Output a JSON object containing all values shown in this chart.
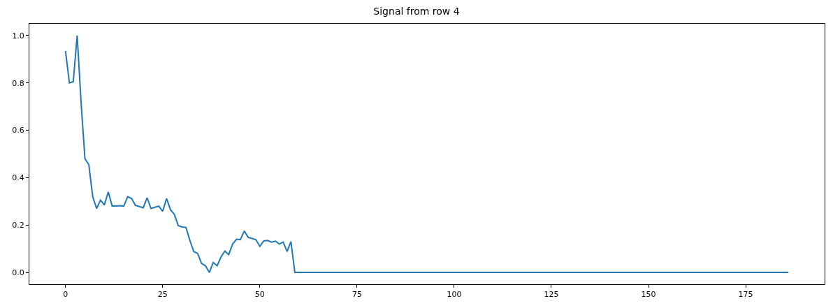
{
  "chart_data": {
    "type": "line",
    "title": "Signal from row 4",
    "x": [
      0,
      1,
      2,
      3,
      4,
      5,
      6,
      7,
      8,
      9,
      10,
      11,
      12,
      13,
      14,
      15,
      16,
      17,
      18,
      19,
      20,
      21,
      22,
      23,
      24,
      25,
      26,
      27,
      28,
      29,
      30,
      31,
      32,
      33,
      34,
      35,
      36,
      37,
      38,
      39,
      40,
      41,
      42,
      43,
      44,
      45,
      46,
      47,
      48,
      49,
      50,
      51,
      52,
      53,
      54,
      55,
      56,
      57,
      58,
      59,
      186
    ],
    "series": [
      {
        "color": "#1f77b4",
        "values": [
          0.935,
          0.8,
          0.805,
          1.0,
          0.72,
          0.48,
          0.455,
          0.32,
          0.27,
          0.305,
          0.285,
          0.34,
          0.28,
          0.28,
          0.282,
          0.28,
          0.32,
          0.312,
          0.283,
          0.278,
          0.273,
          0.315,
          0.27,
          0.275,
          0.28,
          0.258,
          0.312,
          0.265,
          0.245,
          0.198,
          0.192,
          0.19,
          0.135,
          0.088,
          0.08,
          0.038,
          0.028,
          0.0,
          0.042,
          0.028,
          0.065,
          0.09,
          0.075,
          0.12,
          0.14,
          0.138,
          0.175,
          0.148,
          0.143,
          0.138,
          0.11,
          0.133,
          0.135,
          0.128,
          0.132,
          0.12,
          0.128,
          0.088,
          0.13,
          0.0,
          0.0
        ]
      }
    ],
    "xlim": [
      -9.3,
      195.3
    ],
    "ylim": [
      -0.05,
      1.05
    ],
    "xticks": [
      0,
      25,
      50,
      75,
      100,
      125,
      150,
      175
    ],
    "yticks": [
      {
        "value": 0,
        "label": "0.0"
      },
      {
        "value": 0.2,
        "label": "0.2"
      },
      {
        "value": 0.4,
        "label": "0.4"
      },
      {
        "value": 0.6,
        "label": "0.6"
      },
      {
        "value": 0.8,
        "label": "0.8"
      },
      {
        "value": 1.0,
        "label": "1.0"
      }
    ],
    "marker": "none",
    "line_style": "solid"
  }
}
